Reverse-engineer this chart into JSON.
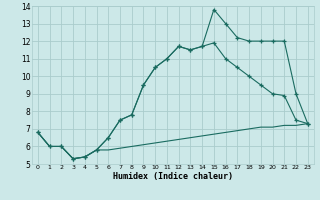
{
  "bg_color": "#cce8e8",
  "grid_color": "#aacccc",
  "line_color": "#1a6b60",
  "xlim": [
    -0.5,
    23.5
  ],
  "ylim": [
    5,
    14
  ],
  "xticks": [
    0,
    1,
    2,
    3,
    4,
    5,
    6,
    7,
    8,
    9,
    10,
    11,
    12,
    13,
    14,
    15,
    16,
    17,
    18,
    19,
    20,
    21,
    22,
    23
  ],
  "yticks": [
    5,
    6,
    7,
    8,
    9,
    10,
    11,
    12,
    13,
    14
  ],
  "xlabel": "Humidex (Indice chaleur)",
  "line1_x": [
    0,
    1,
    2,
    3,
    4,
    5,
    6,
    7,
    8,
    9,
    10,
    11,
    12,
    13,
    14,
    15,
    16,
    17,
    18,
    19,
    20,
    21,
    22,
    23
  ],
  "line1_y": [
    6.8,
    6.0,
    6.0,
    5.3,
    5.4,
    5.8,
    5.8,
    5.9,
    6.0,
    6.1,
    6.2,
    6.3,
    6.4,
    6.5,
    6.6,
    6.7,
    6.8,
    6.9,
    7.0,
    7.1,
    7.1,
    7.2,
    7.2,
    7.3
  ],
  "line2_x": [
    0,
    1,
    2,
    3,
    4,
    5,
    6,
    7,
    8,
    9,
    10,
    11,
    12,
    13,
    14,
    15,
    16,
    17,
    18,
    19,
    20,
    21,
    22,
    23
  ],
  "line2_y": [
    6.8,
    6.0,
    6.0,
    5.3,
    5.4,
    5.8,
    6.5,
    7.5,
    7.8,
    9.5,
    10.5,
    11.0,
    11.7,
    11.5,
    11.7,
    11.9,
    11.0,
    10.5,
    10.0,
    9.5,
    9.0,
    8.9,
    7.5,
    7.3
  ],
  "line3_x": [
    0,
    1,
    2,
    3,
    4,
    5,
    6,
    7,
    8,
    9,
    10,
    11,
    12,
    13,
    14,
    15,
    16,
    17,
    18,
    19,
    20,
    21,
    22,
    23
  ],
  "line3_y": [
    6.8,
    6.0,
    6.0,
    5.3,
    5.4,
    5.8,
    6.5,
    7.5,
    7.8,
    9.5,
    10.5,
    11.0,
    11.7,
    11.5,
    11.7,
    13.8,
    13.0,
    12.2,
    12.0,
    12.0,
    12.0,
    12.0,
    9.0,
    7.3
  ]
}
